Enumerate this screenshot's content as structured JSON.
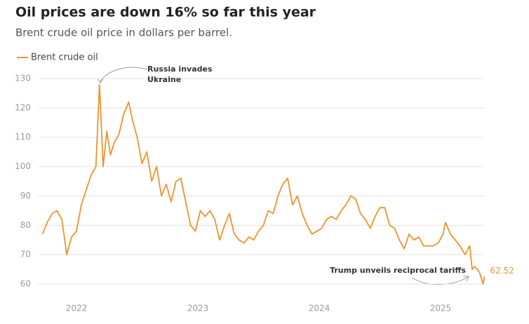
{
  "chart_data": {
    "type": "line",
    "title": "Oil prices are down 16% so far this year",
    "subtitle": "Brent crude oil price in dollars per barrel.",
    "x": [
      2021.72,
      2021.76,
      2021.8,
      2021.84,
      2021.88,
      2021.92,
      2021.96,
      2022.0,
      2022.04,
      2022.08,
      2022.12,
      2022.16,
      2022.19,
      2022.22,
      2022.25,
      2022.28,
      2022.31,
      2022.35,
      2022.39,
      2022.43,
      2022.46,
      2022.5,
      2022.54,
      2022.58,
      2022.62,
      2022.66,
      2022.7,
      2022.74,
      2022.78,
      2022.82,
      2022.86,
      2022.9,
      2022.94,
      2022.98,
      2023.02,
      2023.06,
      2023.1,
      2023.14,
      2023.18,
      2023.22,
      2023.26,
      2023.3,
      2023.34,
      2023.38,
      2023.42,
      2023.46,
      2023.5,
      2023.54,
      2023.58,
      2023.62,
      2023.66,
      2023.7,
      2023.74,
      2023.78,
      2023.82,
      2023.86,
      2023.9,
      2023.94,
      2023.98,
      2024.02,
      2024.06,
      2024.1,
      2024.14,
      2024.18,
      2024.22,
      2024.26,
      2024.3,
      2024.34,
      2024.38,
      2024.42,
      2024.46,
      2024.5,
      2024.54,
      2024.58,
      2024.62,
      2024.66,
      2024.7,
      2024.74,
      2024.78,
      2024.82,
      2024.86,
      2024.9,
      2024.94,
      2024.98,
      2025.02,
      2025.04,
      2025.08,
      2025.12,
      2025.16,
      2025.2,
      2025.24,
      2025.26,
      2025.28,
      2025.32,
      2025.35,
      2025.36
    ],
    "series": [
      {
        "name": "Brent crude oil",
        "color": "#f0922b",
        "values": [
          77,
          81,
          84,
          85,
          82,
          70,
          76,
          78,
          87,
          92,
          97,
          100,
          128,
          100,
          112,
          104,
          108,
          111,
          118,
          122,
          116,
          110,
          101,
          105,
          95,
          100,
          90,
          94,
          88,
          95,
          96,
          88,
          80,
          78,
          85,
          83,
          85,
          82,
          75,
          80,
          84,
          77,
          75,
          74,
          76,
          75,
          78,
          80,
          85,
          84,
          90,
          94,
          96,
          87,
          90,
          84,
          80,
          77,
          78,
          79,
          82,
          83,
          82,
          85,
          87,
          90,
          89,
          84,
          82,
          79,
          83,
          86,
          86,
          80,
          79,
          75,
          72,
          77,
          75,
          76,
          73,
          73,
          73,
          74,
          77,
          81,
          77,
          75,
          73,
          70,
          73,
          65,
          66,
          64,
          60,
          62.52
        ]
      }
    ],
    "xlim": [
      2021.717,
      2025.358
    ],
    "xticks": [
      2022,
      2023,
      2024,
      2025
    ],
    "ylim": [
      60,
      130
    ],
    "yticks": [
      60,
      70,
      80,
      90,
      100,
      110,
      120,
      130
    ],
    "grid": true,
    "legend": "top-left",
    "annotations": [
      {
        "lines": [
          "Russia invades",
          "Ukraine"
        ]
      },
      {
        "lines": [
          "Trump unveils reciprocal tariffs"
        ]
      }
    ]
  }
}
